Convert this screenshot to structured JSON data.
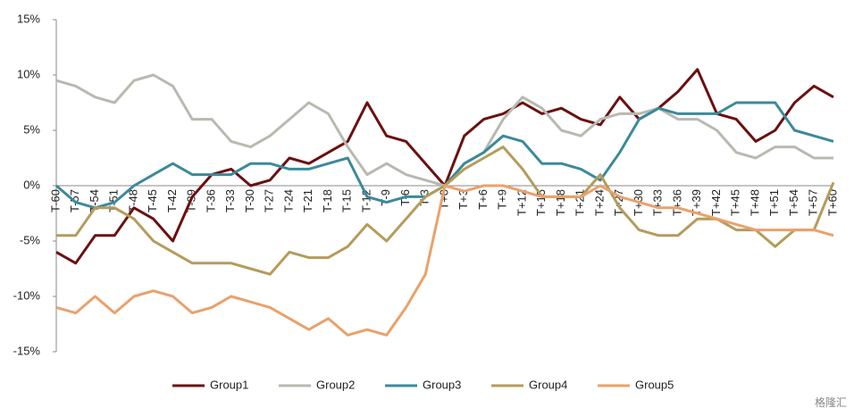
{
  "chart_data": {
    "type": "line",
    "categories": [
      "T-60",
      "T-57",
      "T-54",
      "T-51",
      "T-48",
      "T-45",
      "T-42",
      "T-39",
      "T-36",
      "T-33",
      "T-30",
      "T-27",
      "T-24",
      "T-21",
      "T-18",
      "T-15",
      "T-12",
      "T-9",
      "T-6",
      "T-3",
      "T+0",
      "T+3",
      "T+6",
      "T+9",
      "T+12",
      "T+15",
      "T+18",
      "T+21",
      "T+24",
      "T+27",
      "T+30",
      "T+33",
      "T+36",
      "T+39",
      "T+42",
      "T+45",
      "T+48",
      "T+51",
      "T+54",
      "T+57",
      "T+60"
    ],
    "series": [
      {
        "name": "Group1",
        "color": "#6b1010",
        "values": [
          -6,
          -7,
          -4.5,
          -4.5,
          -2,
          -3,
          -5,
          -1,
          1,
          1.5,
          0,
          0.5,
          2.5,
          2,
          3,
          4,
          7.5,
          4.5,
          4,
          2,
          0,
          4.5,
          6,
          6.5,
          7.5,
          6.5,
          7,
          6,
          5.5,
          8,
          6,
          7,
          8.5,
          10.5,
          6.5,
          6,
          4,
          5,
          7.5,
          9,
          8
        ]
      },
      {
        "name": "Group2",
        "color": "#b9b9b0",
        "values": [
          9.5,
          9,
          8,
          7.5,
          9.5,
          10,
          9,
          6,
          6,
          4,
          3.5,
          4.5,
          6,
          7.5,
          6.5,
          3.5,
          1,
          2,
          1,
          0.5,
          0,
          2,
          3,
          6,
          8,
          7,
          5,
          4.5,
          6,
          6.5,
          6.5,
          7,
          6,
          6,
          5,
          3,
          2.5,
          3.5,
          3.5,
          2.5,
          2.5
        ]
      },
      {
        "name": "Group3",
        "color": "#3b8a9b",
        "values": [
          0,
          -1.5,
          -2,
          -1.5,
          0,
          1,
          2,
          1,
          1,
          1,
          2,
          2,
          1.5,
          1.5,
          2,
          2.5,
          -1,
          -1.5,
          -1,
          -1,
          0,
          2,
          3,
          4.5,
          4,
          2,
          2,
          1.5,
          0.5,
          3,
          6,
          7,
          6.5,
          6.5,
          6.5,
          7.5,
          7.5,
          7.5,
          5,
          4.5,
          4
        ]
      },
      {
        "name": "Group4",
        "color": "#b49c5b",
        "values": [
          -4.5,
          -4.5,
          -2,
          -2,
          -3,
          -5,
          -6,
          -7,
          -7,
          -7,
          -7.5,
          -8,
          -6,
          -6.5,
          -6.5,
          -5.5,
          -3.5,
          -5,
          -3,
          -1,
          0,
          1.5,
          2.5,
          3.5,
          1.5,
          -1,
          -1,
          -1,
          1,
          -2,
          -4,
          -4.5,
          -4.5,
          -3,
          -3,
          -4,
          -4,
          -5.5,
          -4,
          -4,
          0.3
        ]
      },
      {
        "name": "Group5",
        "color": "#eaa16b",
        "values": [
          -11,
          -11.5,
          -10,
          -11.5,
          -10,
          -9.5,
          -10,
          -11.5,
          -11,
          -10,
          -10.5,
          -11,
          -12,
          -13,
          -12,
          -13.5,
          -13,
          -13.5,
          -11,
          -8,
          0,
          -0.5,
          0,
          0,
          -0.5,
          -1,
          -1,
          -1,
          0,
          -1,
          -1.5,
          -2,
          -2,
          -2.5,
          -3,
          -3.5,
          -4,
          -4,
          -4,
          -4,
          -4.5
        ]
      }
    ],
    "ylim": [
      -15,
      15
    ],
    "yticks": [
      {
        "value": -15,
        "label": "-15%"
      },
      {
        "value": -10,
        "label": "-10%"
      },
      {
        "value": -5,
        "label": "-5%"
      },
      {
        "value": 0,
        "label": "0%"
      },
      {
        "value": 5,
        "label": "5%"
      },
      {
        "value": 10,
        "label": "10%"
      },
      {
        "value": 15,
        "label": "15%"
      }
    ],
    "legend": "bottom",
    "watermark": "格隆汇"
  }
}
